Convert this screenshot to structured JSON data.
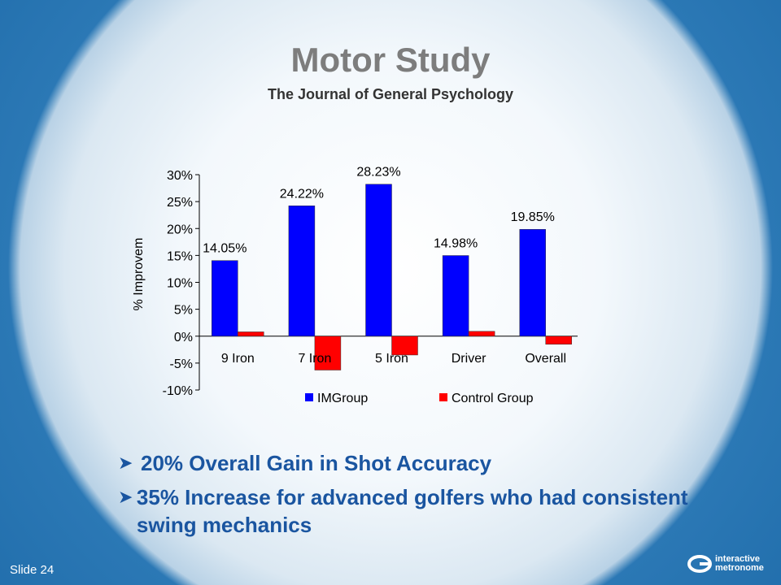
{
  "slide": {
    "title": "Motor Study",
    "subtitle": "The Journal of General Psychology",
    "slide_number": "Slide 24",
    "bullets": [
      "20% Overall Gain in Shot Accuracy",
      "35% Increase for advanced golfers who had consistent swing mechanics"
    ],
    "logo": {
      "line1": "interactive",
      "line2": "metronome"
    }
  },
  "chart_data": {
    "type": "bar",
    "categories": [
      "9 Iron",
      "7 Iron",
      "5 Iron",
      "Driver",
      "Overall"
    ],
    "series": [
      {
        "name": "IMGroup",
        "values": [
          14.05,
          24.22,
          28.23,
          14.98,
          19.85
        ],
        "color": "#0000ff"
      },
      {
        "name": "Control Group",
        "values": [
          0.8,
          -6.3,
          -3.5,
          0.9,
          -1.5
        ],
        "color": "#ff0000"
      }
    ],
    "data_labels": [
      "14.05%",
      "24.22%",
      "28.23%",
      "14.98%",
      "19.85%"
    ],
    "ylabel": "% Improvem",
    "ylim": [
      -10,
      30
    ],
    "yticks": [
      "-10%",
      "-5%",
      "0%",
      "5%",
      "10%",
      "15%",
      "20%",
      "25%",
      "30%"
    ],
    "legend_position": "bottom",
    "grid": false
  }
}
